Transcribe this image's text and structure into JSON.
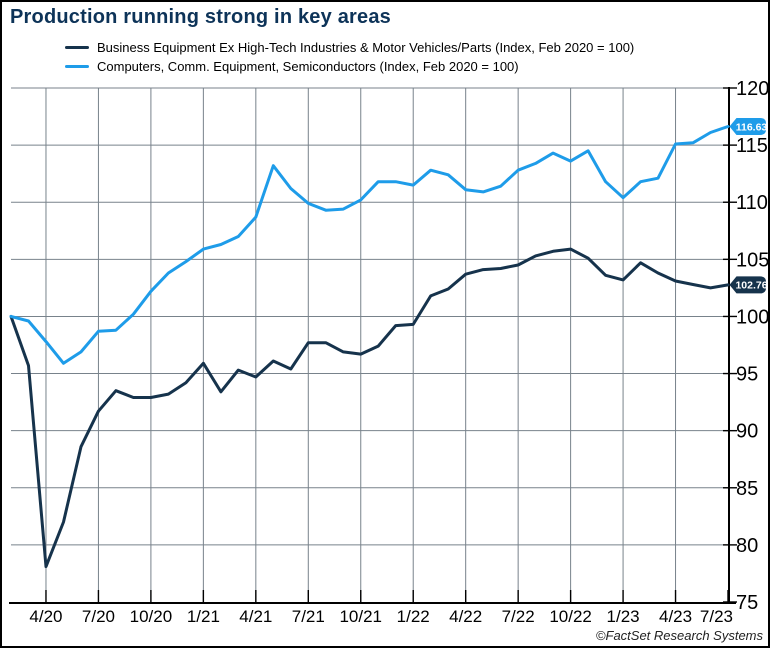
{
  "header": {
    "title": "Production running strong in key areas"
  },
  "legend": {
    "items": [
      {
        "label": "Business Equipment Ex High-Tech Industries & Motor Vehicles/Parts (Index, Feb 2020 = 100)",
        "color": "#16334c"
      },
      {
        "label": "Computers, Comm. Equipment, Semiconductors (Index, Feb 2020 = 100)",
        "color": "#1e9ce9"
      }
    ]
  },
  "footer": {
    "credit": "©FactSet Research Systems"
  },
  "chart_data": {
    "type": "line",
    "title": "Production running strong in key areas",
    "xlabel": "",
    "ylabel": "Index, Feb 2020 = 100",
    "ylim": [
      75,
      120
    ],
    "y_ticks": [
      75,
      80,
      85,
      90,
      95,
      100,
      105,
      110,
      115,
      120
    ],
    "grid": true,
    "legend_position": "top-left",
    "axis_color": "#000000",
    "gridline_color": "#78828b",
    "x_months": [
      "2/20",
      "3/20",
      "4/20",
      "5/20",
      "6/20",
      "7/20",
      "8/20",
      "9/20",
      "10/20",
      "11/20",
      "12/20",
      "1/21",
      "2/21",
      "3/21",
      "4/21",
      "5/21",
      "6/21",
      "7/21",
      "8/21",
      "9/21",
      "10/21",
      "11/21",
      "12/21",
      "1/22",
      "2/22",
      "3/22",
      "4/22",
      "5/22",
      "6/22",
      "7/22",
      "8/22",
      "9/22",
      "10/22",
      "11/22",
      "12/22",
      "1/23",
      "2/23",
      "3/23",
      "4/23",
      "5/23",
      "6/23",
      "7/23"
    ],
    "x_tick_labels": [
      "4/20",
      "7/20",
      "10/20",
      "1/21",
      "4/21",
      "7/21",
      "10/21",
      "1/22",
      "4/22",
      "7/22",
      "10/22",
      "1/23",
      "4/23",
      "7/23"
    ],
    "series": [
      {
        "name": "Business Equipment Ex High-Tech Industries & Motor Vehicles/Parts (Index, Feb 2020 = 100)",
        "color": "#16334c",
        "end_label": "102.76",
        "values": [
          100,
          95.7,
          78.1,
          82.0,
          88.6,
          91.7,
          93.5,
          92.9,
          92.9,
          93.2,
          94.2,
          95.9,
          93.4,
          95.3,
          94.7,
          96.1,
          95.4,
          97.7,
          97.7,
          96.9,
          96.7,
          97.4,
          99.2,
          99.3,
          101.8,
          102.4,
          103.7,
          104.1,
          104.2,
          104.5,
          105.3,
          105.7,
          105.9,
          105.1,
          103.6,
          103.2,
          104.7,
          103.8,
          103.1,
          102.8,
          102.5,
          102.76
        ]
      },
      {
        "name": "Computers, Comm. Equipment, Semiconductors (Index, Feb 2020 = 100)",
        "color": "#1e9ce9",
        "end_label": "116.63",
        "values": [
          100,
          99.6,
          97.8,
          95.9,
          96.9,
          98.7,
          98.8,
          100.2,
          102.2,
          103.8,
          104.8,
          105.9,
          106.3,
          107.0,
          108.7,
          113.2,
          111.2,
          109.9,
          109.3,
          109.4,
          110.2,
          111.8,
          111.8,
          111.5,
          112.8,
          112.4,
          111.1,
          110.9,
          111.4,
          112.8,
          113.4,
          114.3,
          113.6,
          114.5,
          111.8,
          110.4,
          111.8,
          112.1,
          115.1,
          115.2,
          116.1,
          116.63
        ]
      }
    ]
  }
}
